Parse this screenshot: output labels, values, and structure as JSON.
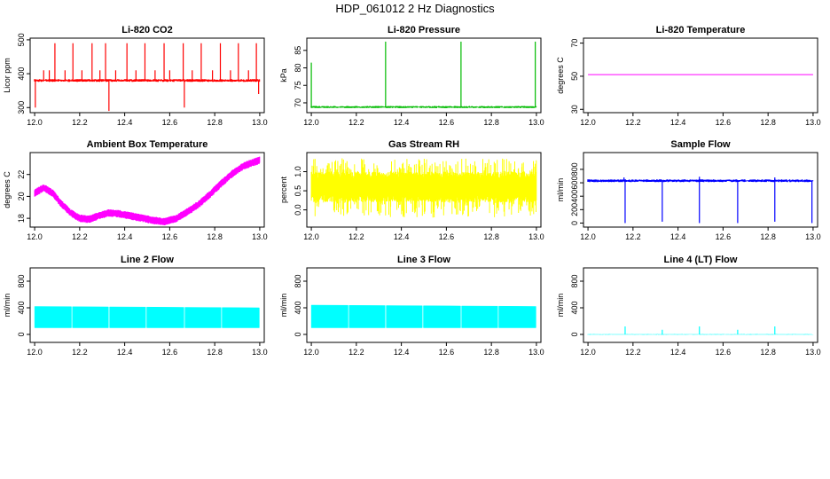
{
  "figure": {
    "title": "HDP_061012  2 Hz Diagnostics"
  },
  "chart_data": [
    {
      "type": "line",
      "title": "Li-820 CO2",
      "ylabel": "Licor ppm",
      "color": "#ff0000",
      "xlim": [
        11.98,
        13.02
      ],
      "ylim": [
        285,
        505
      ],
      "x_ticks": [
        "12.0",
        "12.2",
        "12.4",
        "12.6",
        "12.8",
        "13.0"
      ],
      "y_ticks": [
        {
          "v": 300,
          "label": "300"
        },
        {
          "v": 400,
          "label": "400"
        },
        {
          "v": 500,
          "label": "500"
        }
      ],
      "baseline": 380,
      "band": 4,
      "spikes": [
        {
          "x": 12.003,
          "y": 300
        },
        {
          "x": 12.04,
          "y": 410
        },
        {
          "x": 12.065,
          "y": 410
        },
        {
          "x": 12.09,
          "y": 490
        },
        {
          "x": 12.135,
          "y": 410
        },
        {
          "x": 12.17,
          "y": 490
        },
        {
          "x": 12.21,
          "y": 410
        },
        {
          "x": 12.255,
          "y": 490
        },
        {
          "x": 12.29,
          "y": 410
        },
        {
          "x": 12.315,
          "y": 490
        },
        {
          "x": 12.33,
          "y": 290
        },
        {
          "x": 12.36,
          "y": 410
        },
        {
          "x": 12.41,
          "y": 490
        },
        {
          "x": 12.45,
          "y": 410
        },
        {
          "x": 12.49,
          "y": 490
        },
        {
          "x": 12.535,
          "y": 410
        },
        {
          "x": 12.575,
          "y": 490
        },
        {
          "x": 12.6,
          "y": 410
        },
        {
          "x": 12.66,
          "y": 490
        },
        {
          "x": 12.665,
          "y": 300
        },
        {
          "x": 12.7,
          "y": 410
        },
        {
          "x": 12.74,
          "y": 490
        },
        {
          "x": 12.79,
          "y": 410
        },
        {
          "x": 12.825,
          "y": 490
        },
        {
          "x": 12.87,
          "y": 410
        },
        {
          "x": 12.905,
          "y": 490
        },
        {
          "x": 12.95,
          "y": 410
        },
        {
          "x": 12.985,
          "y": 490
        },
        {
          "x": 12.995,
          "y": 340
        }
      ]
    },
    {
      "type": "line",
      "title": "Li-820 Pressure",
      "ylabel": "kPa",
      "color": "#00bb00",
      "xlim": [
        11.98,
        13.02
      ],
      "ylim": [
        67.2,
        88.5
      ],
      "x_ticks": [
        "12.0",
        "12.2",
        "12.4",
        "12.6",
        "12.8",
        "13.0"
      ],
      "y_ticks": [
        {
          "v": 70,
          "label": "70"
        },
        {
          "v": 75,
          "label": "75"
        },
        {
          "v": 80,
          "label": "80"
        },
        {
          "v": 85,
          "label": "85"
        }
      ],
      "baseline": 68.8,
      "band": 0.3,
      "spikes": [
        {
          "x": 12.0,
          "y": 81.5
        },
        {
          "x": 12.33,
          "y": 87.5
        },
        {
          "x": 12.665,
          "y": 87.5
        },
        {
          "x": 12.995,
          "y": 87.5
        }
      ]
    },
    {
      "type": "line",
      "title": "Li-820 Temperature",
      "ylabel": "degrees C",
      "color": "#ff00ff",
      "xlim": [
        11.98,
        13.02
      ],
      "ylim": [
        28,
        73
      ],
      "x_ticks": [
        "12.0",
        "12.2",
        "12.4",
        "12.6",
        "12.8",
        "13.0"
      ],
      "y_ticks": [
        {
          "v": 30,
          "label": "30"
        },
        {
          "v": 50,
          "label": "50"
        },
        {
          "v": 70,
          "label": "70"
        }
      ],
      "baseline": 51,
      "band": 0,
      "spikes": []
    },
    {
      "type": "line",
      "title": "Ambient Box Temperature",
      "ylabel": "degrees C",
      "color": "#ff00ff",
      "xlim": [
        11.98,
        13.02
      ],
      "ylim": [
        17.2,
        24.0
      ],
      "x_ticks": [
        "12.0",
        "12.2",
        "12.4",
        "12.6",
        "12.8",
        "13.0"
      ],
      "y_ticks": [
        {
          "v": 18,
          "label": "18"
        },
        {
          "v": 20,
          "label": "20"
        },
        {
          "v": 22,
          "label": "22"
        }
      ],
      "band": 0.35,
      "curve": [
        {
          "x": 12.0,
          "y": 20.3
        },
        {
          "x": 12.04,
          "y": 20.8
        },
        {
          "x": 12.08,
          "y": 20.3
        },
        {
          "x": 12.12,
          "y": 19.3
        },
        {
          "x": 12.16,
          "y": 18.5
        },
        {
          "x": 12.2,
          "y": 18.0
        },
        {
          "x": 12.24,
          "y": 17.9
        },
        {
          "x": 12.28,
          "y": 18.2
        },
        {
          "x": 12.33,
          "y": 18.5
        },
        {
          "x": 12.38,
          "y": 18.4
        },
        {
          "x": 12.43,
          "y": 18.2
        },
        {
          "x": 12.48,
          "y": 18.0
        },
        {
          "x": 12.53,
          "y": 17.8
        },
        {
          "x": 12.58,
          "y": 17.7
        },
        {
          "x": 12.63,
          "y": 18.0
        },
        {
          "x": 12.68,
          "y": 18.6
        },
        {
          "x": 12.73,
          "y": 19.3
        },
        {
          "x": 12.78,
          "y": 20.2
        },
        {
          "x": 12.83,
          "y": 21.2
        },
        {
          "x": 12.88,
          "y": 22.1
        },
        {
          "x": 12.93,
          "y": 22.8
        },
        {
          "x": 12.97,
          "y": 23.1
        },
        {
          "x": 13.0,
          "y": 23.3
        }
      ]
    },
    {
      "type": "line",
      "title": "Gas Stream RH",
      "ylabel": "percent",
      "color": "#ffff00",
      "xlim": [
        11.98,
        13.02
      ],
      "ylim": [
        -0.45,
        1.5
      ],
      "x_ticks": [
        "12.0",
        "12.2",
        "12.4",
        "12.6",
        "12.8",
        "13.0"
      ],
      "y_ticks": [
        {
          "v": 0.0,
          "label": "0.0"
        },
        {
          "v": 0.5,
          "label": "0.5"
        },
        {
          "v": 1.0,
          "label": "1.0"
        }
      ],
      "noise": {
        "center": 0.6,
        "min": -0.2,
        "max": 1.35,
        "core_min": 0.2,
        "core_max": 1.0
      }
    },
    {
      "type": "line",
      "title": "Sample Flow",
      "ylabel": "ml/min",
      "color": "#0000ff",
      "xlim": [
        11.98,
        13.02
      ],
      "ylim": [
        -60,
        1050
      ],
      "x_ticks": [
        "12.0",
        "12.2",
        "12.4",
        "12.6",
        "12.8",
        "13.0"
      ],
      "y_ticks": [
        {
          "v": 0,
          "label": "0"
        },
        {
          "v": 200,
          "label": "200"
        },
        {
          "v": 400,
          "label": "400"
        },
        {
          "v": 600,
          "label": "600"
        },
        {
          "v": 800,
          "label": "800"
        }
      ],
      "baseline": 630,
      "band": 20,
      "dips": [
        {
          "x": 12.165,
          "y": 0
        },
        {
          "x": 12.33,
          "y": 20
        },
        {
          "x": 12.495,
          "y": 0
        },
        {
          "x": 12.665,
          "y": 0
        },
        {
          "x": 12.83,
          "y": 20
        },
        {
          "x": 12.995,
          "y": 0
        }
      ],
      "spikes": [
        {
          "x": 12.16,
          "y": 680
        },
        {
          "x": 12.495,
          "y": 690
        },
        {
          "x": 12.83,
          "y": 680
        }
      ]
    },
    {
      "type": "line",
      "title": "Line 2 Flow",
      "ylabel": "ml/min",
      "color": "#00ffff",
      "xlim": [
        11.98,
        13.02
      ],
      "ylim": [
        -120,
        1000
      ],
      "x_ticks": [
        "12.0",
        "12.2",
        "12.4",
        "12.6",
        "12.8",
        "13.0"
      ],
      "y_ticks": [
        {
          "v": 0,
          "label": "0"
        },
        {
          "v": 400,
          "label": "400"
        },
        {
          "v": 800,
          "label": "800"
        }
      ],
      "block": {
        "min": 100,
        "max": 420,
        "max_end": 400
      },
      "gaps": [
        12.165,
        12.33,
        12.495,
        12.665,
        12.83
      ]
    },
    {
      "type": "line",
      "title": "Line 3 Flow",
      "ylabel": "ml/min",
      "color": "#00ffff",
      "xlim": [
        11.98,
        13.02
      ],
      "ylim": [
        -120,
        1000
      ],
      "x_ticks": [
        "12.0",
        "12.2",
        "12.4",
        "12.6",
        "12.8",
        "13.0"
      ],
      "y_ticks": [
        {
          "v": 0,
          "label": "0"
        },
        {
          "v": 400,
          "label": "400"
        },
        {
          "v": 800,
          "label": "800"
        }
      ],
      "block": {
        "min": 100,
        "max": 440,
        "max_end": 420
      },
      "gaps": [
        12.165,
        12.33,
        12.495,
        12.665,
        12.83
      ]
    },
    {
      "type": "line",
      "title": "Line 4 (LT) Flow",
      "ylabel": "ml/min",
      "color": "#00ffff",
      "xlim": [
        11.98,
        13.02
      ],
      "ylim": [
        -120,
        1000
      ],
      "x_ticks": [
        "12.0",
        "12.2",
        "12.4",
        "12.6",
        "12.8",
        "13.0"
      ],
      "y_ticks": [
        {
          "v": 0,
          "label": "0"
        },
        {
          "v": 400,
          "label": "400"
        },
        {
          "v": 800,
          "label": "800"
        }
      ],
      "baseline": 0,
      "band": 5,
      "spikes": [
        {
          "x": 12.165,
          "y": 120
        },
        {
          "x": 12.33,
          "y": 70
        },
        {
          "x": 12.495,
          "y": 120
        },
        {
          "x": 12.665,
          "y": 70
        },
        {
          "x": 12.83,
          "y": 120
        }
      ]
    }
  ]
}
